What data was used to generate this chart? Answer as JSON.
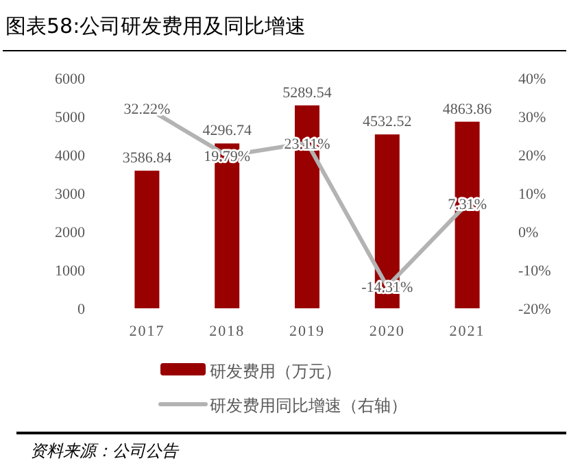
{
  "chart_data": {
    "type": "bar",
    "title": "图表58:公司研发费用及同比增速",
    "categories": [
      "2017",
      "2018",
      "2019",
      "2020",
      "2021"
    ],
    "series": [
      {
        "name": "研发费用（万元）",
        "color": "#990000",
        "values": [
          3586.84,
          4296.74,
          5289.54,
          4532.52,
          4863.86
        ],
        "value_labels": [
          "3586.84",
          "4296.74",
          "5289.54",
          "4532.52",
          "4863.86"
        ]
      },
      {
        "name": "研发费用同比增速（右轴）",
        "type": "line",
        "axis": "y2",
        "color": "#b3b3b3",
        "values": [
          32.22,
          19.79,
          23.11,
          -14.31,
          7.31
        ],
        "value_labels": [
          "32.22%",
          "19.79%",
          "23.11%",
          "-14.31%",
          "7.31%"
        ]
      }
    ],
    "ylim": [
      0,
      6000
    ],
    "yticks": [
      0,
      1000,
      2000,
      3000,
      4000,
      5000,
      6000
    ],
    "y2lim": [
      -20,
      40
    ],
    "y2ticks": [
      {
        "value": -20,
        "label": "-20%"
      },
      {
        "value": -10,
        "label": "-10%"
      },
      {
        "value": 0,
        "label": "0%"
      },
      {
        "value": 10,
        "label": "10%"
      },
      {
        "value": 20,
        "label": "20%"
      },
      {
        "value": 30,
        "label": "30%"
      },
      {
        "value": 40,
        "label": "40%"
      }
    ],
    "legend": "bottom",
    "grid": false,
    "marker": "none",
    "annotations": [
      "资料来源：公司公告"
    ]
  }
}
